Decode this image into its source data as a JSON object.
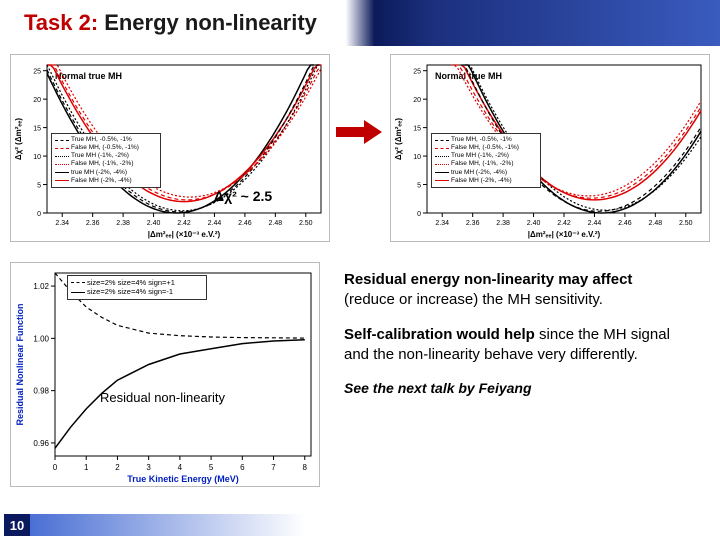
{
  "title": {
    "task": "Task 2:",
    "rest": "Energy non-linearity"
  },
  "page_number": "10",
  "chi_annotation": "Δχ² ~ 2.5",
  "arrow_color": "#c00000",
  "top_charts": {
    "shared": {
      "xlabel": "|Δm²ₑₑ| (×10⁻³ e.V.²)",
      "ylabel": "Δχ² (Δm²ₑₑ)",
      "inset_label": "Normal true MH",
      "x_ticks": [
        2.34,
        2.36,
        2.38,
        2.4,
        2.42,
        2.44,
        2.46,
        2.48,
        2.5
      ],
      "y_ticks": [
        0,
        5,
        10,
        15,
        20,
        25
      ],
      "xlim": [
        2.33,
        2.51
      ],
      "ylim": [
        0,
        26
      ],
      "font_size_ticks": 7,
      "font_size_label": 8,
      "bg": "#ffffff",
      "frame": "#000000"
    },
    "legend_items": [
      {
        "label": "True MH, -0.5%, -1%",
        "color": "#000000",
        "dash": "4 3"
      },
      {
        "label": "False MH, (-0.5%, -1%)",
        "color": "#e00000",
        "dash": "4 3"
      },
      {
        "label": "True MH (-1%, -2%)",
        "color": "#000000",
        "dash": "2 2"
      },
      {
        "label": "False MH, (-1%, -2%)",
        "color": "#e00000",
        "dash": "2 2"
      },
      {
        "label": "true MH (-2%, -4%)",
        "color": "#000000",
        "dash": "none"
      },
      {
        "label": "False MH (-2%, -4%)",
        "color": "#e00000",
        "dash": "none"
      }
    ],
    "left": {
      "curves": [
        {
          "color": "#000000",
          "dash": "none",
          "width": 1.5,
          "vertex_x": 2.415,
          "min_y": 0,
          "a": 3400
        },
        {
          "color": "#e00000",
          "dash": "none",
          "width": 1.5,
          "vertex_x": 2.42,
          "min_y": 2.0,
          "a": 3200
        },
        {
          "color": "#000000",
          "dash": "4 3",
          "width": 1.2,
          "vertex_x": 2.417,
          "min_y": 0.2,
          "a": 3300
        },
        {
          "color": "#e00000",
          "dash": "4 3",
          "width": 1.2,
          "vertex_x": 2.422,
          "min_y": 2.3,
          "a": 3100
        },
        {
          "color": "#000000",
          "dash": "2 2",
          "width": 1.2,
          "vertex_x": 2.419,
          "min_y": 0.4,
          "a": 3250
        },
        {
          "color": "#e00000",
          "dash": "2 2",
          "width": 1.2,
          "vertex_x": 2.424,
          "min_y": 2.8,
          "a": 3050
        }
      ]
    },
    "right": {
      "curves": [
        {
          "color": "#000000",
          "dash": "none",
          "width": 1.5,
          "vertex_x": 2.445,
          "min_y": 0,
          "a": 3400
        },
        {
          "color": "#e00000",
          "dash": "none",
          "width": 1.5,
          "vertex_x": 2.44,
          "min_y": 2.3,
          "a": 3200
        },
        {
          "color": "#000000",
          "dash": "4 3",
          "width": 1.2,
          "vertex_x": 2.443,
          "min_y": 0.3,
          "a": 3300
        },
        {
          "color": "#e00000",
          "dash": "4 3",
          "width": 1.2,
          "vertex_x": 2.438,
          "min_y": 2.6,
          "a": 3100
        },
        {
          "color": "#000000",
          "dash": "2 2",
          "width": 1.2,
          "vertex_x": 2.447,
          "min_y": 0.5,
          "a": 3250
        },
        {
          "color": "#e00000",
          "dash": "2 2",
          "width": 1.2,
          "vertex_x": 2.436,
          "min_y": 3.0,
          "a": 3050
        }
      ]
    }
  },
  "bottom_chart": {
    "xlabel": "True Kinetic Energy (MeV)",
    "ylabel": "Residual Nonlinear Function",
    "x_ticks": [
      0,
      1,
      2,
      3,
      4,
      5,
      6,
      7,
      8
    ],
    "y_ticks": [
      0.96,
      0.98,
      1.0,
      1.02
    ],
    "xlim": [
      0,
      8.2
    ],
    "ylim": [
      0.955,
      1.025
    ],
    "legend_items": [
      {
        "label": "size=2% size=4% sign=+1",
        "color": "#000000",
        "dash": "4 3"
      },
      {
        "label": "size=2% size=4% sign=-1",
        "color": "#000000",
        "dash": "none"
      }
    ],
    "curves": [
      {
        "color": "#000000",
        "dash": "4 3",
        "width": 1.2,
        "pts": [
          [
            0,
            1.025
          ],
          [
            0.5,
            1.018
          ],
          [
            1,
            1.012
          ],
          [
            1.5,
            1.008
          ],
          [
            2,
            1.005
          ],
          [
            3,
            1.002
          ],
          [
            4,
            1.001
          ],
          [
            5,
            1.0005
          ],
          [
            6,
            1.0003
          ],
          [
            7,
            1.0002
          ],
          [
            8,
            1.0001
          ]
        ]
      },
      {
        "color": "#000000",
        "dash": "none",
        "width": 1.5,
        "pts": [
          [
            0,
            0.958
          ],
          [
            0.5,
            0.966
          ],
          [
            1,
            0.973
          ],
          [
            1.5,
            0.979
          ],
          [
            2,
            0.984
          ],
          [
            3,
            0.99
          ],
          [
            4,
            0.994
          ],
          [
            5,
            0.996
          ],
          [
            6,
            0.998
          ],
          [
            7,
            0.999
          ],
          [
            8,
            0.9995
          ]
        ]
      }
    ],
    "overlay_label": "Residual non-linearity"
  },
  "body_text": {
    "p1_bold": "Residual energy non-linearity may affect ",
    "p1_plain": "(reduce or increase) the MH sensitivity.",
    "p2_bold": "Self-calibration would help ",
    "p2_plain": "since the MH signal and the non-linearity behave very differently.",
    "note": "See the next talk by Feiyang"
  }
}
